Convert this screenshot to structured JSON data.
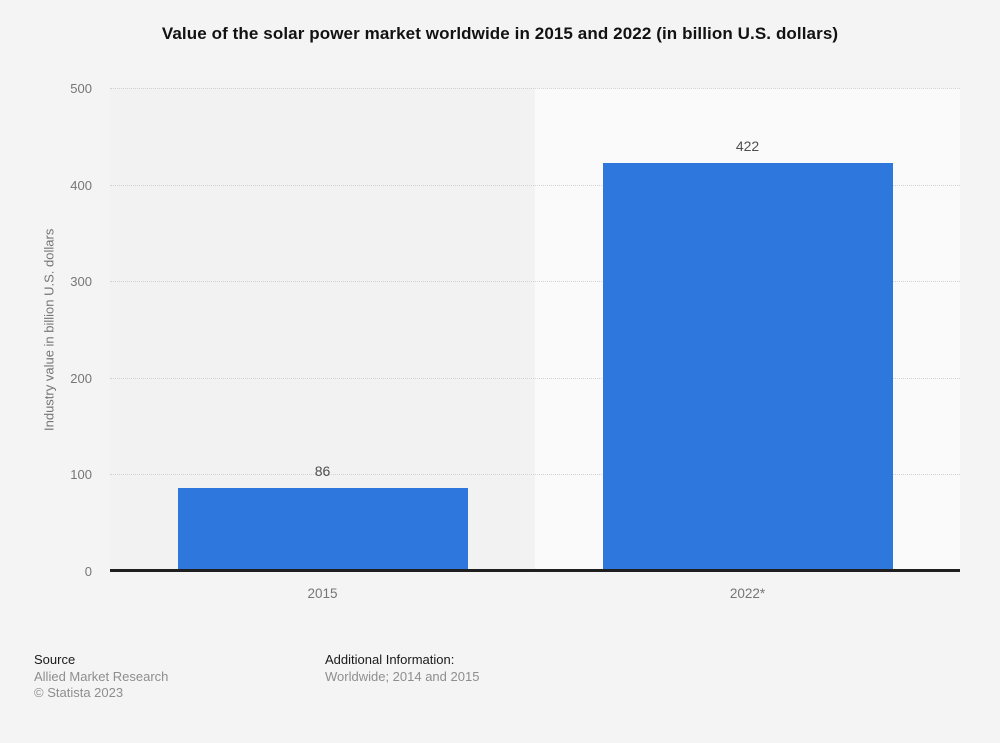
{
  "title": "Value of the solar power market worldwide in 2015 and 2022 (in billion U.S. dollars)",
  "chart_data": {
    "type": "bar",
    "categories": [
      "2015",
      "2022*"
    ],
    "values": [
      86,
      422
    ],
    "title": "Value of the solar power market worldwide in 2015 and 2022 (in billion U.S. dollars)",
    "xlabel": "",
    "ylabel": "Industry value in billion U.S. dollars",
    "ylim": [
      0,
      500
    ],
    "yticks": [
      0,
      100,
      200,
      300,
      400,
      500
    ],
    "grid": "horizontal-dotted",
    "legend": "none",
    "bar_color": "#2d77dd",
    "band_colors": [
      "#f2f2f2",
      "#fafafa"
    ]
  },
  "footer": {
    "source_label": "Source",
    "source_name": "Allied Market Research",
    "copyright": "© Statista 2023",
    "additional_label": "Additional Information:",
    "additional_text": "Worldwide; 2014 and 2015"
  },
  "colors": {
    "page_background": "#f4f4f4",
    "axis_line": "#1f1f1f",
    "gridline": "#d2d2d2",
    "tick_text": "#767676",
    "value_label_text": "#4f4f4f",
    "title_text": "#121212"
  }
}
